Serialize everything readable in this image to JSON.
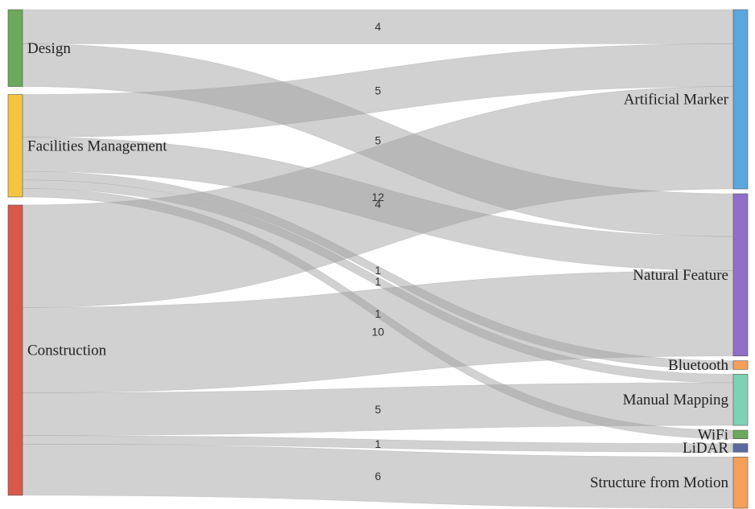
{
  "chart_data": {
    "type": "sankey",
    "sources": [
      {
        "id": "design",
        "label": "Design",
        "color": "#6aaa5a"
      },
      {
        "id": "fm",
        "label": "Facilities Management",
        "color": "#f5c542"
      },
      {
        "id": "construction",
        "label": "Construction",
        "color": "#d9584a"
      }
    ],
    "targets": [
      {
        "id": "am",
        "label": "Artificial Marker",
        "color": "#5aa7e0"
      },
      {
        "id": "nf",
        "label": "Natural Feature",
        "color": "#8f6fc8"
      },
      {
        "id": "bt",
        "label": "Bluetooth",
        "color": "#f5a05a"
      },
      {
        "id": "mm",
        "label": "Manual Mapping",
        "color": "#7fd1b6"
      },
      {
        "id": "wifi",
        "label": "WiFi",
        "color": "#6aaa5a"
      },
      {
        "id": "lidar",
        "label": "LiDAR",
        "color": "#5a6aa0"
      },
      {
        "id": "sfm",
        "label": "Structure from Motion",
        "color": "#f5a05a"
      }
    ],
    "links": [
      {
        "source": "design",
        "target": "am",
        "value": 4,
        "label": "4"
      },
      {
        "source": "design",
        "target": "nf",
        "value": 5,
        "label": "5"
      },
      {
        "source": "fm",
        "target": "am",
        "value": 5,
        "label": "5"
      },
      {
        "source": "fm",
        "target": "nf",
        "value": 4,
        "label": "4"
      },
      {
        "source": "fm",
        "target": "bt",
        "value": 1,
        "label": "1"
      },
      {
        "source": "fm",
        "target": "mm",
        "value": 1,
        "label": "1"
      },
      {
        "source": "fm",
        "target": "wifi",
        "value": 1,
        "label": "1"
      },
      {
        "source": "construction",
        "target": "am",
        "value": 12,
        "label": "12"
      },
      {
        "source": "construction",
        "target": "nf",
        "value": 10,
        "label": "10"
      },
      {
        "source": "construction",
        "target": "mm",
        "value": 5,
        "label": "5"
      },
      {
        "source": "construction",
        "target": "lidar",
        "value": 1,
        "label": "1"
      },
      {
        "source": "construction",
        "target": "sfm",
        "value": 6,
        "label": "6"
      }
    ]
  }
}
